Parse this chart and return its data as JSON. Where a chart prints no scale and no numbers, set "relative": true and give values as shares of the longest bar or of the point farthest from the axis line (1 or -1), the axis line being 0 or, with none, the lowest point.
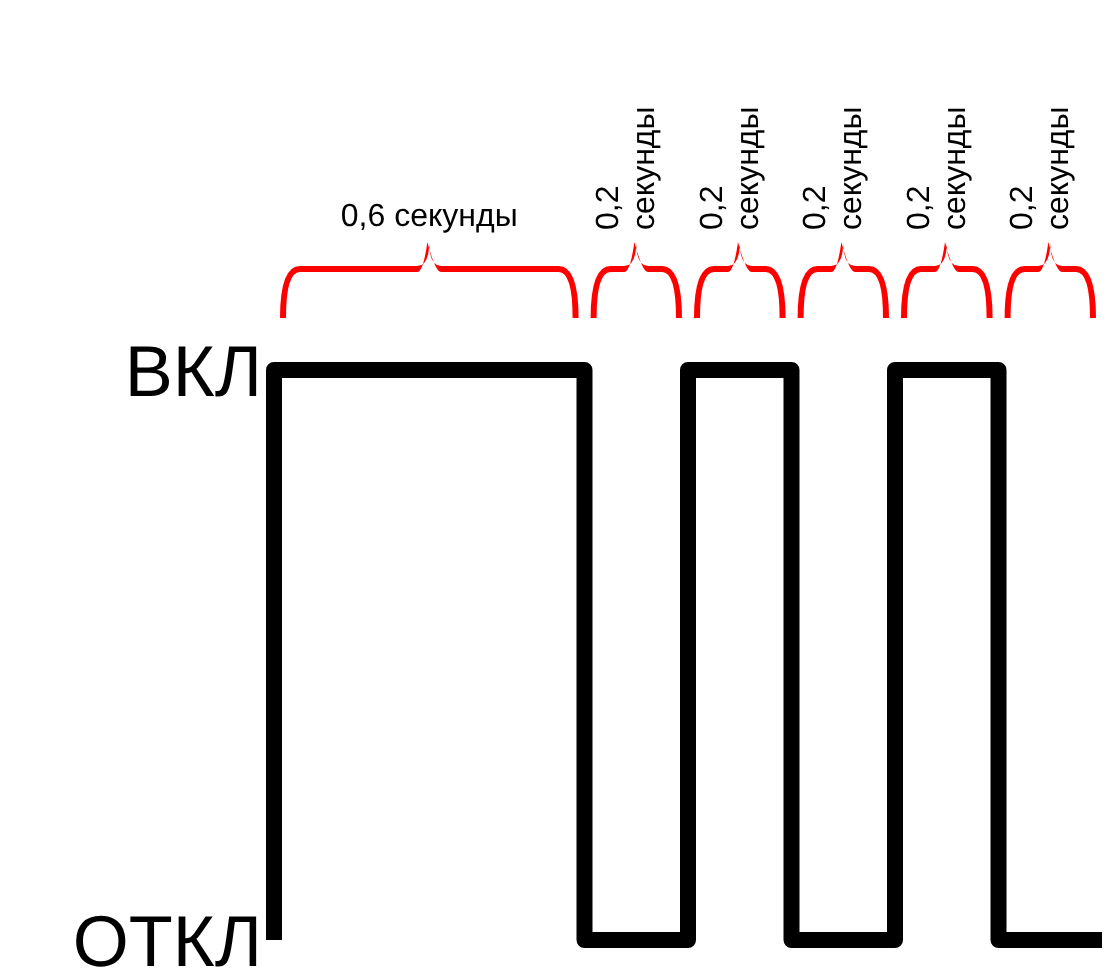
{
  "chart_data": {
    "type": "step",
    "categories": [
      null,
      null,
      null,
      null,
      null,
      null,
      null,
      null,
      null
    ],
    "values": [
      0,
      1,
      1,
      1,
      0,
      1,
      0,
      1,
      0
    ],
    "color": "#000000",
    "relative": true,
    "grid": false,
    "marker": "none",
    "annotations": [
      "ВКЛ",
      "ОТКЛ",
      "0,6 секунды",
      "0,2 секунды",
      "0,2 секунды",
      "0,2 секунды",
      "0,2 секунды",
      "0,2 секунды"
    ]
  }
}
